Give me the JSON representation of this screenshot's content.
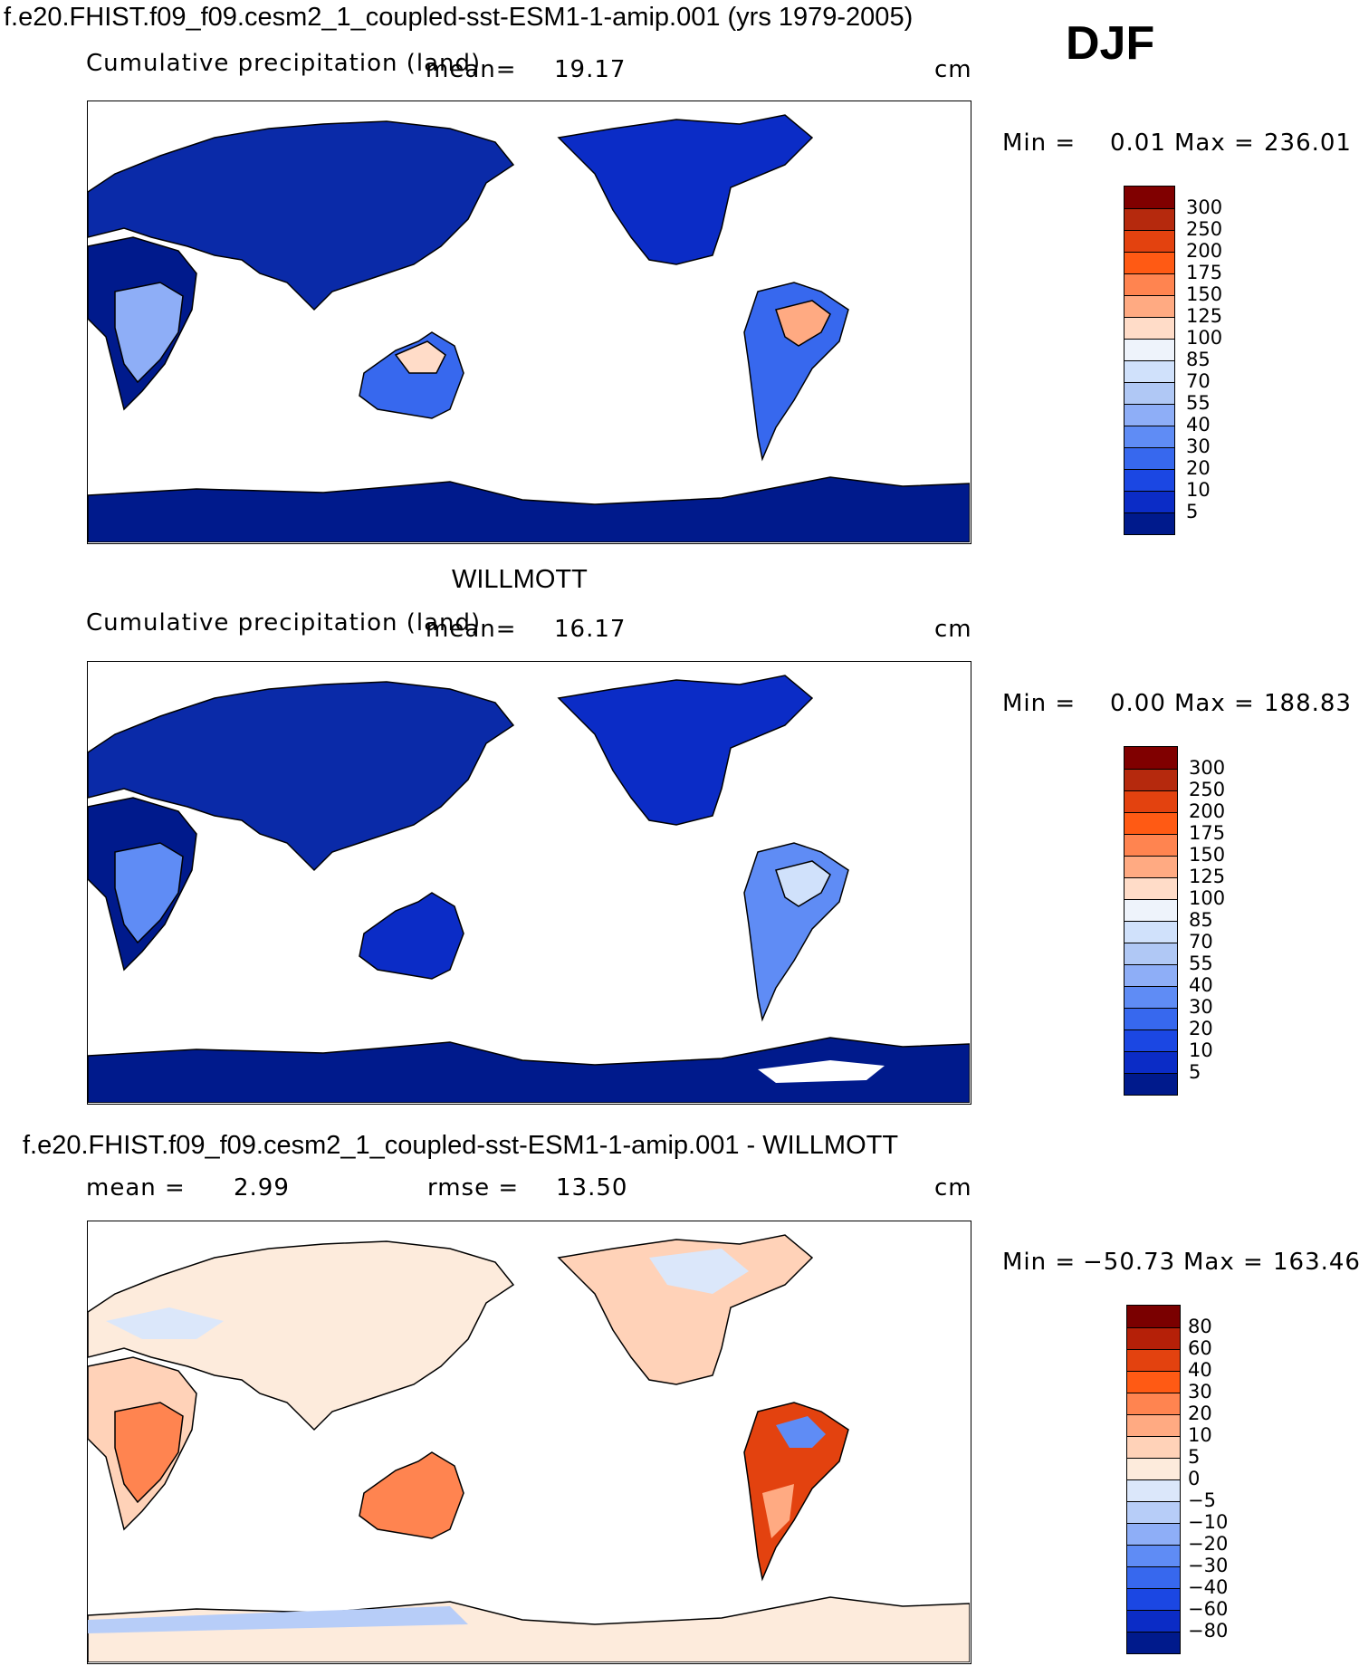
{
  "header": {
    "model_title": "f.e20.FHIST.f09_f09.cesm2_1_coupled-sst-ESM1-1-amip.001 (yrs 1979-2005)",
    "season": "DJF"
  },
  "chart_data": [
    {
      "type": "heatmap",
      "title": "f.e20.FHIST.f09_f09.cesm2_1_coupled-sst-ESM1-1-amip.001 (yrs 1979-2005)",
      "subtitle": "Cumulative precipitation (land)",
      "mean_label": "mean=",
      "mean": "19.17",
      "units": "cm",
      "min_label": "Min =",
      "min": "0.01",
      "max_label": "Max =",
      "max": "236.01",
      "colorbar": {
        "levels": [
          "300",
          "250",
          "200",
          "175",
          "150",
          "125",
          "100",
          "85",
          "70",
          "55",
          "40",
          "30",
          "20",
          "10",
          "5"
        ],
        "colors": [
          "#800000",
          "#b5290d",
          "#e3420f",
          "#ff5a14",
          "#ff8450",
          "#ffaa82",
          "#ffdcc8",
          "#eef3fb",
          "#d0e1fb",
          "#b0c8f5",
          "#8eaef7",
          "#5f8cf5",
          "#3768ee",
          "#1b47e3",
          "#0b2cc6",
          "#001a8c"
        ]
      }
    },
    {
      "type": "heatmap",
      "title": "WILLMOTT",
      "subtitle": "Cumulative precipitation (land)",
      "mean_label": "mean=",
      "mean": "16.17",
      "units": "cm",
      "min_label": "Min =",
      "min": "0.00",
      "max_label": "Max =",
      "max": "188.83",
      "colorbar": {
        "levels": [
          "300",
          "250",
          "200",
          "175",
          "150",
          "125",
          "100",
          "85",
          "70",
          "55",
          "40",
          "30",
          "20",
          "10",
          "5"
        ],
        "colors": [
          "#800000",
          "#b5290d",
          "#e3420f",
          "#ff5a14",
          "#ff8450",
          "#ffaa82",
          "#ffdcc8",
          "#eef3fb",
          "#d0e1fb",
          "#b0c8f5",
          "#8eaef7",
          "#5f8cf5",
          "#3768ee",
          "#1b47e3",
          "#0b2cc6",
          "#001a8c"
        ]
      }
    },
    {
      "type": "heatmap",
      "title": "f.e20.FHIST.f09_f09.cesm2_1_coupled-sst-ESM1-1-amip.001 - WILLMOTT",
      "mean_label": "mean =",
      "mean": "2.99",
      "rmse_label": "rmse =",
      "rmse": "13.50",
      "units": "cm",
      "min_label": "Min =",
      "min": "−50.73",
      "max_label": "Max =",
      "max": "163.46",
      "colorbar": {
        "levels": [
          "80",
          "60",
          "40",
          "30",
          "20",
          "10",
          "5",
          "0",
          "−5",
          "−10",
          "−20",
          "−30",
          "−40",
          "−60",
          "−80"
        ],
        "colors": [
          "#7a0000",
          "#b52008",
          "#e3420f",
          "#ff5a14",
          "#ff8450",
          "#ffaa82",
          "#ffd2b8",
          "#fdebdc",
          "#dbe7fa",
          "#b7cdf8",
          "#8eaef7",
          "#5f8cf5",
          "#3768ee",
          "#1b47e3",
          "#0b2cc6",
          "#001a8c"
        ]
      }
    }
  ]
}
